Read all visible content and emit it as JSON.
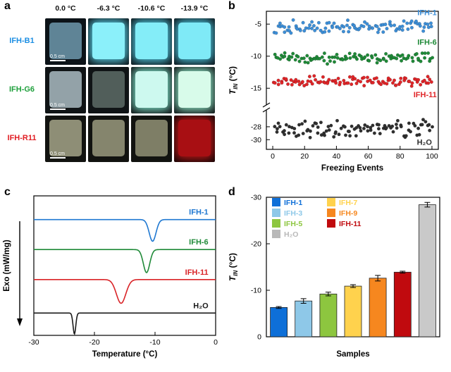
{
  "panels": {
    "a": {
      "label": "a",
      "col_headers": [
        "0.0 °C",
        "-6.3 °C",
        "-10.6 °C",
        "-13.9 °C"
      ],
      "scalebar_text": "0.5 cm",
      "rows": [
        {
          "label": "IFH-B1",
          "label_color": "#1d8fe3",
          "tiles": [
            {
              "bg": "#0c1318",
              "fill": "#5f8496",
              "glow": ""
            },
            {
              "bg": "#0c1318",
              "fill": "#8bf0fa",
              "glow": "#5fd9ef"
            },
            {
              "bg": "#0c1318",
              "fill": "#84edf8",
              "glow": "#58d5ec"
            },
            {
              "bg": "#0c1318",
              "fill": "#7feaf7",
              "glow": "#52d1ea"
            }
          ]
        },
        {
          "label": "IFH-G6",
          "label_color": "#1fa03c",
          "tiles": [
            {
              "bg": "#101416",
              "fill": "#93a2a8",
              "glow": ""
            },
            {
              "bg": "#101416",
              "fill": "#515e5a",
              "glow": ""
            },
            {
              "bg": "#101416",
              "fill": "#cdf9ef",
              "glow": "#86ecd2"
            },
            {
              "bg": "#101416",
              "fill": "#d8fbea",
              "glow": "#96f0cf"
            }
          ]
        },
        {
          "label": "IFH-R11",
          "label_color": "#e11d23",
          "tiles": [
            {
              "bg": "#121310",
              "fill": "#8e8e76",
              "glow": ""
            },
            {
              "bg": "#121310",
              "fill": "#85856d",
              "glow": ""
            },
            {
              "bg": "#121310",
              "fill": "#7e7e66",
              "glow": ""
            },
            {
              "bg": "#160606",
              "fill": "#a80f13",
              "glow": "#c41a1a"
            }
          ]
        }
      ]
    },
    "b": {
      "label": "b"
    },
    "c": {
      "label": "c"
    },
    "d": {
      "label": "d"
    }
  },
  "chart_data": [
    {
      "panel": "b",
      "type": "scatter",
      "xlabel": "Freezing Events",
      "ylabel_parts": {
        "main": "T",
        "sub": "IN",
        "rest": " (°C)"
      },
      "x_ticks": [
        0,
        20,
        40,
        60,
        80,
        100
      ],
      "x_range": [
        -4,
        104
      ],
      "axis_break": {
        "upper_range": [
          -17.5,
          -3
        ],
        "upper_ticks": [
          -5,
          -10,
          -15
        ],
        "lower_range": [
          -31.5,
          -25.5
        ],
        "lower_ticks": [
          -28,
          -30
        ]
      },
      "seed": 7,
      "series": [
        {
          "name": "IFH-1",
          "color": "#3d8fd8",
          "y_center": -5.4,
          "y_jitter": 1.1,
          "n": 100,
          "label_pos": [
            103,
            -3.6
          ]
        },
        {
          "name": "IFH-6",
          "color": "#1f8a38",
          "y_center": -10.3,
          "y_jitter": 1.0,
          "n": 100,
          "label_pos": [
            103,
            -8.2
          ]
        },
        {
          "name": "IFH-11",
          "color": "#e02528",
          "y_center": -13.9,
          "y_jitter": 0.9,
          "n": 100,
          "label_pos": [
            103,
            -16.4
          ]
        },
        {
          "name": "H₂O",
          "color": "#2f2f2f",
          "y_center": -28.3,
          "y_jitter": 1.5,
          "n": 100,
          "label_pos": [
            100,
            -30.8
          ]
        }
      ]
    },
    {
      "panel": "c",
      "type": "line",
      "xlabel": "Temperature (°C)",
      "ylabel": "Exo (mW/mg)",
      "x_ticks": [
        -30,
        -20,
        -10,
        0
      ],
      "x_range": [
        -30,
        0
      ],
      "series": [
        {
          "name": "IFH-1",
          "color": "#1f78d1",
          "baseline": 0.17,
          "peak_center": -10.4,
          "peak_sigma": 0.8,
          "peak_depth": 0.155,
          "label_x": -1.2
        },
        {
          "name": "IFH-6",
          "color": "#1f8a38",
          "baseline": 0.385,
          "peak_center": -11.4,
          "peak_sigma": 0.75,
          "peak_depth": 0.165,
          "label_x": -1.2
        },
        {
          "name": "IFH-11",
          "color": "#d92327",
          "baseline": 0.6,
          "peak_center": -15.6,
          "peak_sigma": 1.1,
          "peak_depth": 0.17,
          "label_x": -1.2
        },
        {
          "name": "H₂O",
          "color": "#1a1a1a",
          "baseline": 0.84,
          "peak_center": -23.3,
          "peak_sigma": 0.32,
          "peak_depth": 0.15,
          "label_x": -1.2
        }
      ]
    },
    {
      "panel": "d",
      "type": "bar",
      "xlabel": "Samples",
      "ylabel_parts": {
        "main": "T",
        "sub": "IN",
        "rest": " (°C)"
      },
      "y_ticks": [
        0,
        -10,
        -20,
        -30
      ],
      "y_range": [
        0,
        -30
      ],
      "categories": [
        "IFH-1",
        "IFH-3",
        "IFH-5",
        "IFH-7",
        "IFH-9",
        "IFH-11",
        "H₂O"
      ],
      "values": [
        -6.3,
        -7.7,
        -9.2,
        -10.9,
        -12.6,
        -13.9,
        -28.4
      ],
      "errors": [
        0.2,
        0.5,
        0.4,
        0.3,
        0.6,
        0.2,
        0.5
      ],
      "colors": [
        "#0e6fd8",
        "#8ec8e8",
        "#8dc63f",
        "#ffd24d",
        "#f6871f",
        "#c00a0e",
        "#c9c9c9"
      ],
      "legend": [
        {
          "label": "IFH-1",
          "color": "#0e6fd8",
          "col": 0,
          "row": 0
        },
        {
          "label": "IFH-3",
          "color": "#8ec8e8",
          "col": 0,
          "row": 1
        },
        {
          "label": "IFH-5",
          "color": "#8dc63f",
          "col": 0,
          "row": 2
        },
        {
          "label": "H₂O",
          "color": "#b9b9b9",
          "col": 0,
          "row": 3
        },
        {
          "label": "IFH-7",
          "color": "#ffd24d",
          "col": 1,
          "row": 0
        },
        {
          "label": "IFH-9",
          "color": "#f6871f",
          "col": 1,
          "row": 1
        },
        {
          "label": "IFH-11",
          "color": "#c00a0e",
          "col": 1,
          "row": 2
        }
      ]
    }
  ]
}
